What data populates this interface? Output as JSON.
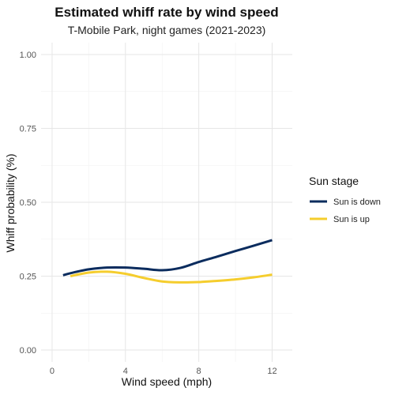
{
  "chart_data": {
    "type": "line",
    "title": "Estimated whiff rate by wind speed",
    "subtitle": "T-Mobile Park, night games (2021-2023)",
    "xlabel": "Wind speed (mph)",
    "ylabel": "Whiff probability (%)",
    "xlim": [
      -0.6,
      13.1
    ],
    "ylim": [
      -0.04,
      1.04
    ],
    "x_ticks": [
      0,
      4,
      8,
      12
    ],
    "x_tick_labels": [
      "0",
      "4",
      "8",
      "12"
    ],
    "y_ticks": [
      0,
      0.25,
      0.5,
      0.75,
      1
    ],
    "y_tick_labels": [
      "0.00",
      "0.25",
      "0.50",
      "0.75",
      "1.00"
    ],
    "grid": true,
    "legend": {
      "title": "Sun stage",
      "position": "right"
    },
    "series": [
      {
        "name": "Sun is down",
        "color": "#0b2c5e",
        "x": [
          0.6,
          1,
          2,
          3,
          4,
          5,
          6,
          7,
          8,
          9,
          10,
          11,
          12
        ],
        "y": [
          0.253,
          0.26,
          0.273,
          0.279,
          0.279,
          0.275,
          0.27,
          0.278,
          0.298,
          0.316,
          0.335,
          0.353,
          0.372
        ]
      },
      {
        "name": "Sun is up",
        "color": "#f5cd2d",
        "x": [
          1,
          2,
          3,
          4,
          5,
          6,
          7,
          8,
          9,
          10,
          11,
          12
        ],
        "y": [
          0.25,
          0.262,
          0.265,
          0.258,
          0.244,
          0.232,
          0.229,
          0.23,
          0.234,
          0.239,
          0.246,
          0.255
        ]
      }
    ]
  }
}
